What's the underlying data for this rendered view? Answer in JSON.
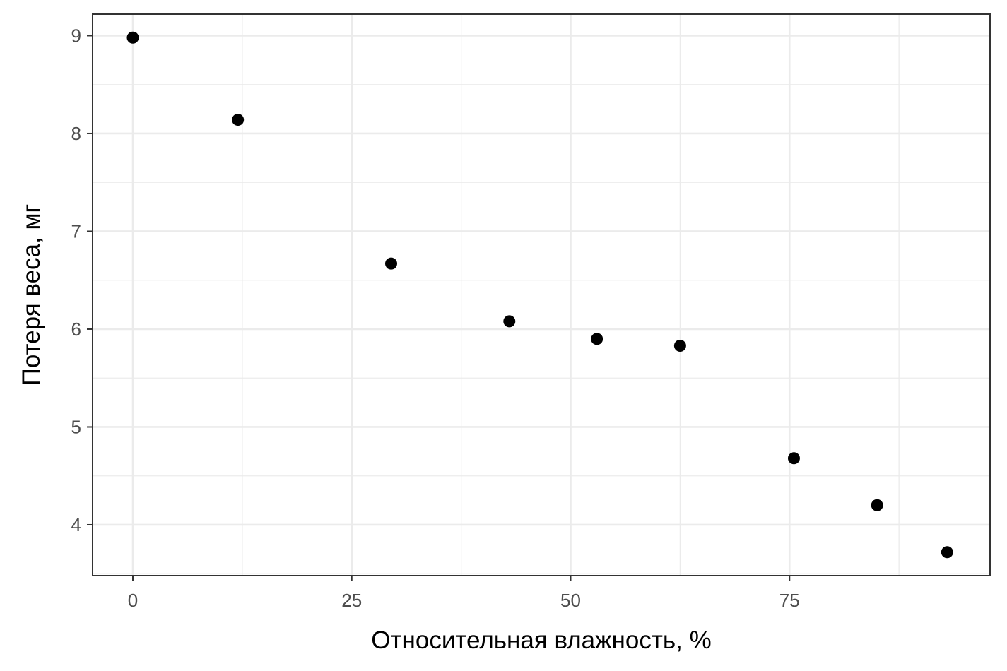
{
  "chart_data": {
    "type": "scatter",
    "title": "",
    "xlabel": "Относительная влажность, %",
    "ylabel": "Потеря веса, мг",
    "xlim": [
      -4.6,
      97.9
    ],
    "ylim": [
      3.48,
      9.22
    ],
    "x_ticks": [
      0,
      25,
      50,
      75
    ],
    "x_tick_labels": [
      "0",
      "25",
      "50",
      "75"
    ],
    "y_ticks": [
      4,
      5,
      6,
      7,
      8,
      9
    ],
    "y_tick_labels": [
      "4",
      "5",
      "6",
      "7",
      "8",
      "9"
    ],
    "grid": true,
    "legend": "none",
    "series": [
      {
        "x": [
          0,
          12,
          29.5,
          43,
          53,
          62.5,
          75.5,
          85,
          93
        ],
        "y": [
          8.98,
          8.14,
          6.67,
          6.08,
          5.9,
          5.83,
          4.68,
          4.2,
          3.72
        ],
        "color": "#000000"
      }
    ]
  }
}
